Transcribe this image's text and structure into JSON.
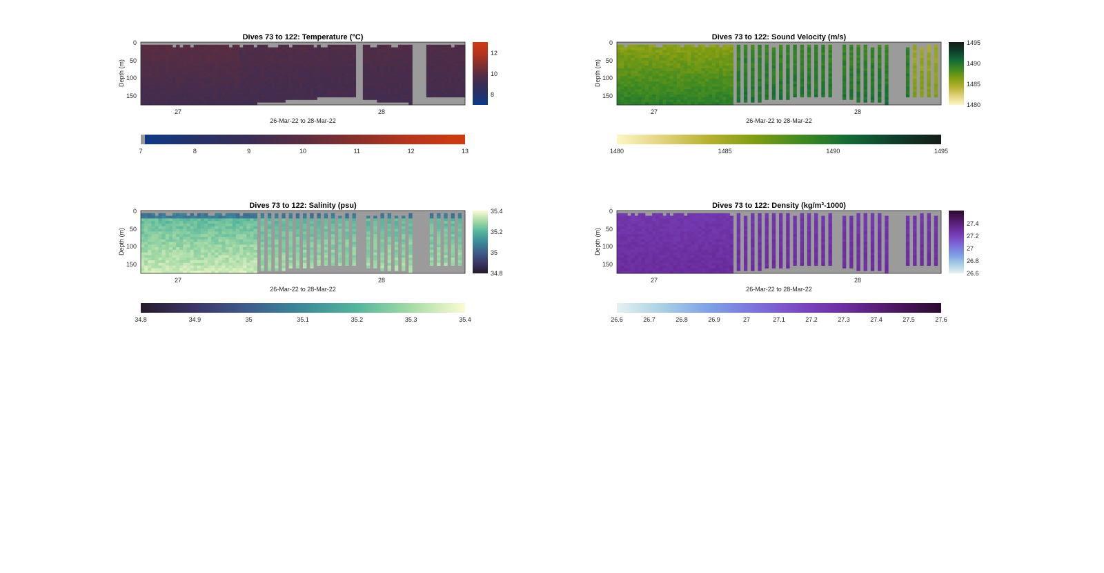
{
  "chart_data": [
    {
      "type": "heatmap",
      "key": "temp",
      "title": "Dives 73 to 122: Temperature (°C)",
      "ylabel": "Depth (m)",
      "xlabel": "26-Mar-22 to 28-Mar-22",
      "x_ticks": [
        "27",
        "28"
      ],
      "y_ticks": [
        "0",
        "50",
        "100",
        "150"
      ],
      "ylim": [
        0,
        175
      ],
      "colorbar_ticks_side": [
        "8",
        "10",
        "12"
      ],
      "colorbar_ticks_bottom": [
        "7",
        "8",
        "9",
        "10",
        "11",
        "12",
        "13"
      ],
      "clim": [
        7,
        13
      ],
      "colors": [
        "#0c3a8a",
        "#253168",
        "#3a2d55",
        "#5a2d40",
        "#8a2f2b",
        "#b8351c",
        "#cf3b10"
      ],
      "style": "continuous"
    },
    {
      "type": "heatmap",
      "key": "sv",
      "title": "Dives 73 to 122: Sound Velocity (m/s)",
      "ylabel": "Depth (m)",
      "xlabel": "26-Mar-22 to 28-Mar-22",
      "x_ticks": [
        "27",
        "28"
      ],
      "y_ticks": [
        "0",
        "50",
        "100",
        "150"
      ],
      "ylim": [
        0,
        175
      ],
      "colorbar_ticks_side": [
        "1480",
        "1485",
        "1490",
        "1495"
      ],
      "colorbar_ticks_bottom": [
        "1480",
        "1485",
        "1490",
        "1495"
      ],
      "clim": [
        1480,
        1495
      ],
      "colors": [
        "#fcf6c4",
        "#e2d27c",
        "#b5b030",
        "#7f9c12",
        "#3f8a22",
        "#126b36",
        "#0f3e2a",
        "#151c17"
      ],
      "style": "bars"
    },
    {
      "type": "heatmap",
      "key": "sal",
      "title": "Dives 73 to 122: Salinity (psu)",
      "ylabel": "Depth (m)",
      "xlabel": "26-Mar-22 to 28-Mar-22",
      "x_ticks": [
        "27",
        "28"
      ],
      "y_ticks": [
        "0",
        "50",
        "100",
        "150"
      ],
      "ylim": [
        0,
        175
      ],
      "colorbar_ticks_side": [
        "34.8",
        "35",
        "35.2",
        "35.4"
      ],
      "colorbar_ticks_bottom": [
        "34.8",
        "34.9",
        "35",
        "35.1",
        "35.2",
        "35.3",
        "35.4"
      ],
      "clim": [
        34.8,
        35.4
      ],
      "colors": [
        "#271a2c",
        "#3c3668",
        "#3e5d8c",
        "#3c8a99",
        "#55b59c",
        "#a6dba6",
        "#fcfbd3"
      ],
      "style": "bars"
    },
    {
      "type": "heatmap",
      "key": "dens",
      "title": "Dives 73 to 122: Density (kg/m³-1000)",
      "ylabel": "Depth (m)",
      "xlabel": "26-Mar-22 to 28-Mar-22",
      "x_ticks": [
        "27",
        "28"
      ],
      "y_ticks": [
        "0",
        "50",
        "100",
        "150"
      ],
      "ylim": [
        0,
        175
      ],
      "colorbar_ticks_side": [
        "26.6",
        "26.8",
        "27",
        "27.2",
        "27.4"
      ],
      "colorbar_ticks_bottom": [
        "26.6",
        "26.7",
        "26.8",
        "26.9",
        "27",
        "27.1",
        "27.2",
        "27.3",
        "27.4",
        "27.5",
        "27.6"
      ],
      "clim": [
        26.6,
        27.6
      ],
      "colors": [
        "#e6f1f1",
        "#a8cfe4",
        "#7ea0e6",
        "#7d72dc",
        "#7b46c2",
        "#6a2b9a",
        "#4e1763",
        "#2c0b2f"
      ],
      "style": "bars"
    }
  ]
}
